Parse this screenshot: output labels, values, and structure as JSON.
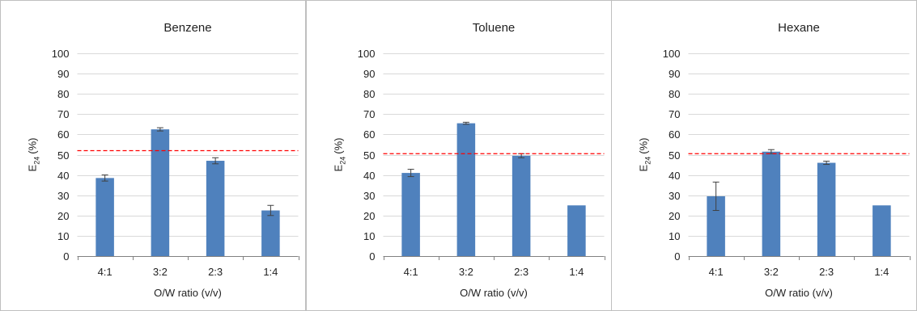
{
  "chart_data": [
    {
      "type": "bar",
      "title": "Benzene",
      "xlabel": "O/W ratio (v/v)",
      "ylabel_main": "E",
      "ylabel_sub": "24",
      "ylabel_unit": "(%)",
      "categories": [
        "4:1",
        "3:2",
        "2:3",
        "1:4"
      ],
      "values": [
        38.5,
        62.5,
        47,
        22.5
      ],
      "errors": [
        1.5,
        0.8,
        1.5,
        2.5
      ],
      "reference_line": 52,
      "ylim": [
        0,
        100
      ],
      "yticks": [
        0,
        10,
        20,
        30,
        40,
        50,
        60,
        70,
        80,
        90,
        100
      ],
      "grid": true,
      "bar_color": "#4f81bd",
      "reference_color": "#ff0000"
    },
    {
      "type": "bar",
      "title": "Toluene",
      "xlabel": "O/W ratio (v/v)",
      "ylabel_main": "E",
      "ylabel_sub": "24",
      "ylabel_unit": "(%)",
      "categories": [
        "4:1",
        "3:2",
        "2:3",
        "1:4"
      ],
      "values": [
        41,
        65.5,
        49.5,
        25
      ],
      "errors": [
        1.8,
        0.5,
        1,
        0
      ],
      "reference_line": 50.5,
      "ylim": [
        0,
        100
      ],
      "yticks": [
        0,
        10,
        20,
        30,
        40,
        50,
        60,
        70,
        80,
        90,
        100
      ],
      "grid": true,
      "bar_color": "#4f81bd",
      "reference_color": "#ff0000"
    },
    {
      "type": "bar",
      "title": "Hexane",
      "xlabel": "O/W ratio (v/v)",
      "ylabel_main": "E",
      "ylabel_sub": "24",
      "ylabel_unit": "(%)",
      "categories": [
        "4:1",
        "3:2",
        "2:3",
        "1:4"
      ],
      "values": [
        29.5,
        51.5,
        46,
        25
      ],
      "errors": [
        7,
        1,
        0.8,
        0
      ],
      "reference_line": 50.5,
      "ylim": [
        0,
        100
      ],
      "yticks": [
        0,
        10,
        20,
        30,
        40,
        50,
        60,
        70,
        80,
        90,
        100
      ],
      "grid": true,
      "bar_color": "#4f81bd",
      "reference_color": "#ff0000"
    }
  ]
}
